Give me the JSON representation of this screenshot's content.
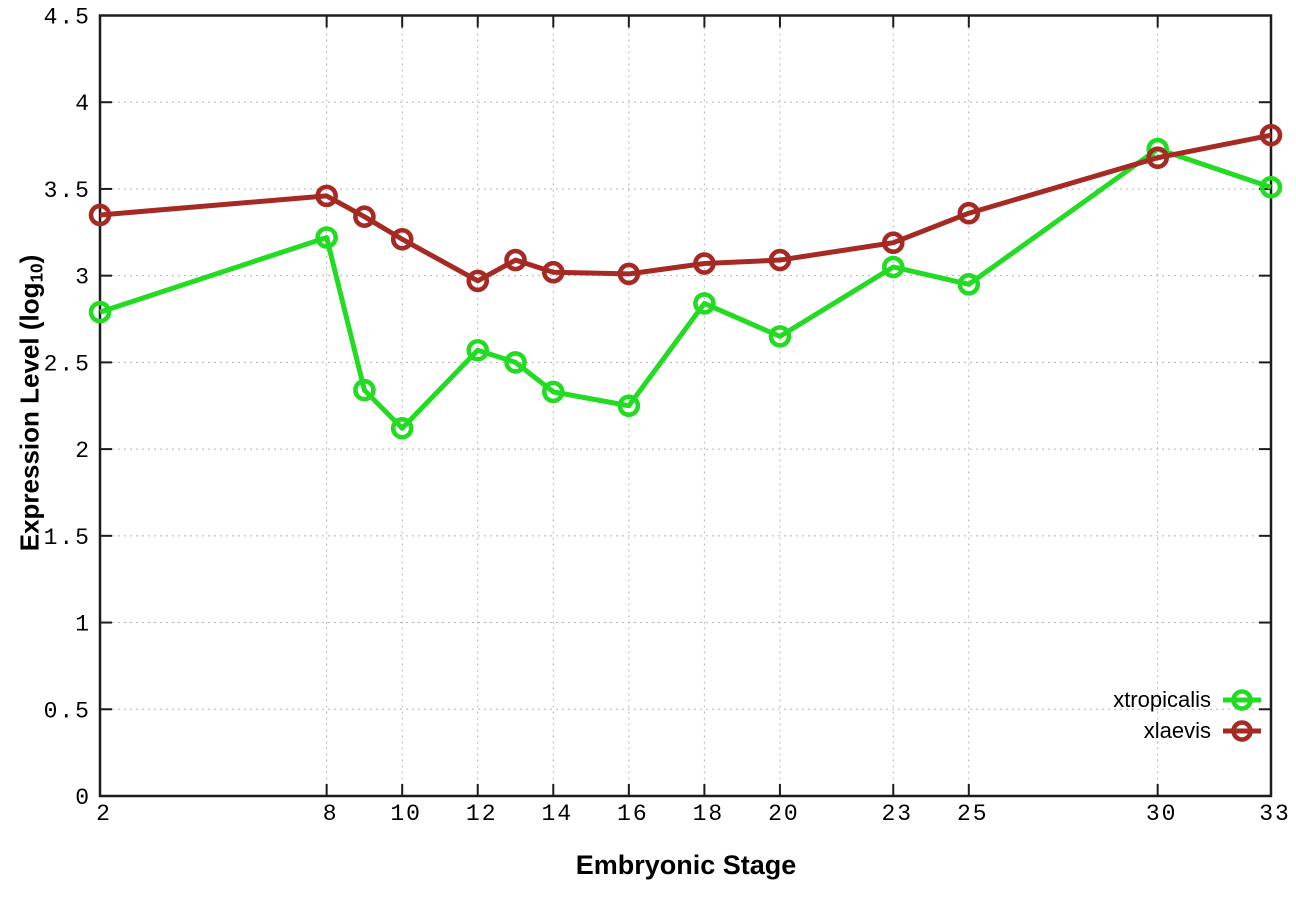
{
  "chart_data": {
    "type": "line",
    "title": "",
    "xlabel": "Embryonic Stage",
    "ylabel": "Expression Level (log10)",
    "ylabel_parts": {
      "prefix": "Expression Level (log",
      "sub": "10",
      "suffix": ")"
    },
    "x": [
      2,
      8,
      9,
      10,
      12,
      13,
      14,
      16,
      18,
      20,
      23,
      25,
      30,
      33
    ],
    "series": [
      {
        "name": "xtropicalis",
        "color": "#22DB22",
        "values": [
          2.79,
          3.22,
          2.34,
          2.12,
          2.57,
          2.5,
          2.33,
          2.25,
          2.84,
          2.65,
          3.05,
          2.95,
          3.73,
          3.51
        ]
      },
      {
        "name": "xlaevis",
        "color": "#A62A24",
        "values": [
          3.35,
          3.46,
          3.34,
          3.21,
          2.97,
          3.09,
          3.02,
          3.01,
          3.07,
          3.09,
          3.19,
          3.36,
          3.68,
          3.81
        ]
      }
    ],
    "xlim": [
      2,
      33
    ],
    "ylim": [
      0,
      4.5
    ],
    "xticks": [
      2,
      8,
      10,
      12,
      14,
      16,
      18,
      20,
      23,
      25,
      30,
      33
    ],
    "xtick_labels": [
      "2",
      "8",
      "10",
      "12",
      "14",
      "16",
      "18",
      "20",
      "23",
      "25",
      "30",
      "33"
    ],
    "yticks": [
      0,
      0.5,
      1,
      1.5,
      2,
      2.5,
      3,
      3.5,
      4,
      4.5
    ],
    "ytick_labels": [
      "0",
      "0.5",
      "1",
      "1.5",
      "2",
      "2.5",
      "3",
      "3.5",
      "4",
      "4.5"
    ],
    "grid": true,
    "legend_position": "bottom-right",
    "marker": "open-circle",
    "style": {
      "grid_color": "#B5B5B5",
      "axis_color": "#1C1C1C",
      "line_width": 5,
      "marker_radius": 9,
      "marker_stroke": 4.6
    }
  }
}
